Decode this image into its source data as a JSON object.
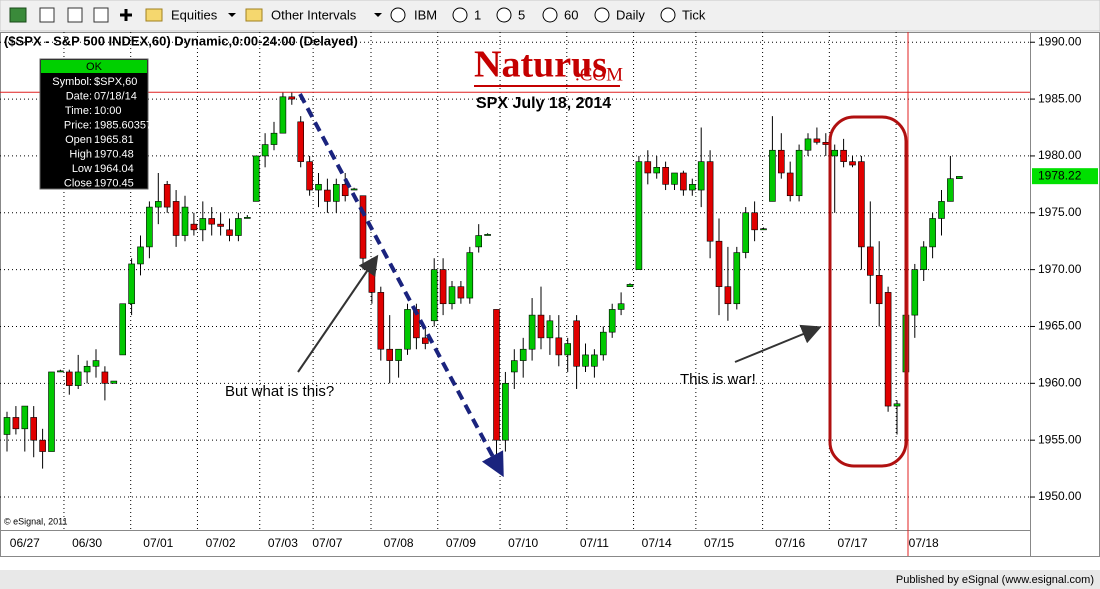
{
  "toolbar": {
    "items": [
      "Equities",
      "Other Intervals",
      "IBM",
      "1",
      "5",
      "60",
      "Daily",
      "Tick"
    ]
  },
  "footer": "Published by eSignal (www.esignal.com)",
  "chart_data": {
    "type": "candlestick",
    "title": "($SPX - S&P 500 INDEX,60) Dynamic,0:00-24:00 (Delayed)",
    "up_color": "#00c800",
    "down_color": "#e00000",
    "ylim": [
      1947.1,
      1990.9
    ],
    "yticks": [
      {
        "value": 1950,
        "label": "1950.00"
      },
      {
        "value": 1955,
        "label": "1955.00"
      },
      {
        "value": 1960,
        "label": "1960.00"
      },
      {
        "value": 1965,
        "label": "1965.00"
      },
      {
        "value": 1970,
        "label": "1970.00"
      },
      {
        "value": 1975,
        "label": "1975.00"
      },
      {
        "value": 1980,
        "label": "1980.00"
      },
      {
        "value": 1985,
        "label": "1985.00"
      },
      {
        "value": 1990,
        "label": "1990.00"
      }
    ],
    "grid": true,
    "last_price": {
      "value": 1978.22,
      "label": "1978.22"
    },
    "info_box": {
      "status": "OK",
      "rows": [
        {
          "label": "Symbol:",
          "value": "$SPX,60"
        },
        {
          "label": "Date:",
          "value": "07/18/14"
        },
        {
          "label": "Time:",
          "value": "10:00"
        },
        {
          "label": "Price:",
          "value": "1985.60357"
        },
        {
          "label": "Open",
          "value": "1965.81"
        },
        {
          "label": "High",
          "value": "1970.48"
        },
        {
          "label": "Low",
          "value": "1964.04"
        },
        {
          "label": "Close",
          "value": "1970.45"
        }
      ]
    },
    "annotations": {
      "brand": "Naturus",
      "brand_suffix": ".COM",
      "subtitle": "SPX July 18, 2014",
      "question": "But what is this?",
      "war": "This is war!",
      "copyright": "© eSignal, 2011"
    },
    "categories": [
      null,
      null,
      "06/27",
      null,
      null,
      null,
      null,
      null,
      null,
      "06/30",
      null,
      null,
      null,
      null,
      null,
      null,
      null,
      "07/01",
      null,
      null,
      null,
      null,
      null,
      null,
      "07/02",
      null,
      null,
      null,
      null,
      null,
      null,
      "07/03",
      null,
      null,
      null,
      null,
      "07/07",
      null,
      null,
      null,
      null,
      null,
      null,
      null,
      "07/08",
      null,
      null,
      null,
      null,
      null,
      null,
      "07/09",
      null,
      null,
      null,
      null,
      null,
      null,
      "07/10",
      null,
      null,
      null,
      null,
      null,
      null,
      null,
      "07/11",
      null,
      null,
      null,
      null,
      null,
      null,
      "07/14",
      null,
      null,
      null,
      null,
      null,
      null,
      "07/15",
      null,
      null,
      null,
      null,
      null,
      null,
      null,
      "07/16",
      null,
      null,
      null,
      null,
      null,
      null,
      "07/17",
      null,
      null,
      null,
      null,
      null,
      null,
      null,
      "07/18",
      null,
      null,
      null,
      null
    ],
    "candles": [
      {
        "open": 1955.5,
        "high": 1957.5,
        "low": 1954,
        "close": 1957
      },
      {
        "open": 1957,
        "high": 1958,
        "low": 1955.5,
        "close": 1956
      },
      {
        "open": 1956,
        "high": 1958,
        "low": 1954,
        "close": 1958
      },
      {
        "open": 1957,
        "high": 1958,
        "low": 1953.5,
        "close": 1955
      },
      {
        "open": 1955,
        "high": 1956,
        "low": 1952.5,
        "close": 1954
      },
      {
        "open": 1954,
        "high": 1961,
        "low": 1954,
        "close": 1961
      },
      {
        "open": 1961,
        "high": 1961.2,
        "low": 1961,
        "close": 1961.1
      },
      {
        "open": 1961,
        "high": 1961.2,
        "low": 1959,
        "close": 1959.8
      },
      {
        "open": 1959.8,
        "high": 1962.5,
        "low": 1959.5,
        "close": 1961
      },
      {
        "open": 1961,
        "high": 1962,
        "low": 1960,
        "close": 1961.5
      },
      {
        "open": 1961.5,
        "high": 1963,
        "low": 1960.5,
        "close": 1962
      },
      {
        "open": 1961,
        "high": 1961.5,
        "low": 1958.5,
        "close": 1960
      },
      {
        "open": 1960,
        "high": 1960.2,
        "low": 1960,
        "close": 1960.2
      },
      {
        "open": 1962.5,
        "high": 1967,
        "low": 1962.5,
        "close": 1967
      },
      {
        "open": 1967,
        "high": 1971,
        "low": 1966,
        "close": 1970.5
      },
      {
        "open": 1970.5,
        "high": 1973,
        "low": 1969.5,
        "close": 1972
      },
      {
        "open": 1972,
        "high": 1976,
        "low": 1971,
        "close": 1975.5
      },
      {
        "open": 1975.5,
        "high": 1978.5,
        "low": 1974,
        "close": 1976
      },
      {
        "open": 1977.5,
        "high": 1977.8,
        "low": 1975,
        "close": 1975.5
      },
      {
        "open": 1976,
        "high": 1977,
        "low": 1972,
        "close": 1973
      },
      {
        "open": 1973,
        "high": 1976.5,
        "low": 1972.5,
        "close": 1975.5
      },
      {
        "open": 1974,
        "high": 1975,
        "low": 1973,
        "close": 1973.5
      },
      {
        "open": 1973.5,
        "high": 1976,
        "low": 1972.5,
        "close": 1974.5
      },
      {
        "open": 1974.5,
        "high": 1975.5,
        "low": 1973,
        "close": 1974
      },
      {
        "open": 1974,
        "high": 1975,
        "low": 1973,
        "close": 1973.8
      },
      {
        "open": 1973.5,
        "high": 1974.5,
        "low": 1972.5,
        "close": 1973
      },
      {
        "open": 1973,
        "high": 1975,
        "low": 1972.5,
        "close": 1974.5
      },
      {
        "open": 1974.5,
        "high": 1974.8,
        "low": 1974.5,
        "close": 1974.6
      },
      {
        "open": 1976,
        "high": 1980,
        "low": 1976,
        "close": 1980
      },
      {
        "open": 1980,
        "high": 1982,
        "low": 1979,
        "close": 1981
      },
      {
        "open": 1981,
        "high": 1983,
        "low": 1980.5,
        "close": 1982
      },
      {
        "open": 1982,
        "high": 1985.6,
        "low": 1982,
        "close": 1985.2
      },
      {
        "open": 1985.2,
        "high": 1985.6,
        "low": 1984.5,
        "close": 1985
      },
      {
        "open": 1983,
        "high": 1983.5,
        "low": 1979,
        "close": 1979.5
      },
      {
        "open": 1979.5,
        "high": 1980,
        "low": 1976.5,
        "close": 1977
      },
      {
        "open": 1977,
        "high": 1978.5,
        "low": 1975.5,
        "close": 1977.5
      },
      {
        "open": 1977,
        "high": 1978,
        "low": 1975,
        "close": 1976
      },
      {
        "open": 1976,
        "high": 1978,
        "low": 1975,
        "close": 1977.5
      },
      {
        "open": 1977.5,
        "high": 1978.5,
        "low": 1976,
        "close": 1976.5
      },
      {
        "open": 1977,
        "high": 1977.2,
        "low": 1977,
        "close": 1977.1
      },
      {
        "open": 1976.5,
        "high": 1976.5,
        "low": 1970,
        "close": 1971
      },
      {
        "open": 1970.5,
        "high": 1971,
        "low": 1967,
        "close": 1968
      },
      {
        "open": 1968,
        "high": 1968.5,
        "low": 1962,
        "close": 1963
      },
      {
        "open": 1963,
        "high": 1966,
        "low": 1960,
        "close": 1962
      },
      {
        "open": 1962,
        "high": 1963,
        "low": 1960.5,
        "close": 1963
      },
      {
        "open": 1963,
        "high": 1967,
        "low": 1962.5,
        "close": 1966.5
      },
      {
        "open": 1966.5,
        "high": 1967,
        "low": 1963,
        "close": 1964
      },
      {
        "open": 1964,
        "high": 1965,
        "low": 1963,
        "close": 1963.5
      },
      {
        "open": 1965.5,
        "high": 1971,
        "low": 1965,
        "close": 1970
      },
      {
        "open": 1970,
        "high": 1971,
        "low": 1966,
        "close": 1967
      },
      {
        "open": 1967,
        "high": 1969,
        "low": 1966.5,
        "close": 1968.5
      },
      {
        "open": 1968.5,
        "high": 1969,
        "low": 1967,
        "close": 1967.5
      },
      {
        "open": 1967.5,
        "high": 1972,
        "low": 1967,
        "close": 1971.5
      },
      {
        "open": 1972,
        "high": 1974,
        "low": 1971.5,
        "close": 1973
      },
      {
        "open": 1973,
        "high": 1973.2,
        "low": 1973,
        "close": 1973.1
      },
      {
        "open": 1966.5,
        "high": 1966.5,
        "low": 1953,
        "close": 1955
      },
      {
        "open": 1955,
        "high": 1961,
        "low": 1954,
        "close": 1960
      },
      {
        "open": 1961,
        "high": 1963,
        "low": 1959.5,
        "close": 1962
      },
      {
        "open": 1962,
        "high": 1964,
        "low": 1960.5,
        "close": 1963
      },
      {
        "open": 1963,
        "high": 1967.5,
        "low": 1962,
        "close": 1966
      },
      {
        "open": 1966,
        "high": 1968.5,
        "low": 1963,
        "close": 1964
      },
      {
        "open": 1964,
        "high": 1966,
        "low": 1962.5,
        "close": 1965.5
      },
      {
        "open": 1964,
        "high": 1966,
        "low": 1961.5,
        "close": 1962.5
      },
      {
        "open": 1962.5,
        "high": 1964,
        "low": 1961,
        "close": 1963.5
      },
      {
        "open": 1965.5,
        "high": 1966,
        "low": 1959.5,
        "close": 1961.5
      },
      {
        "open": 1961.5,
        "high": 1963.5,
        "low": 1961,
        "close": 1962.5
      },
      {
        "open": 1961.5,
        "high": 1963,
        "low": 1960.5,
        "close": 1962.5
      },
      {
        "open": 1962.5,
        "high": 1965,
        "low": 1962,
        "close": 1964.5
      },
      {
        "open": 1964.5,
        "high": 1967,
        "low": 1964,
        "close": 1966.5
      },
      {
        "open": 1966.5,
        "high": 1968,
        "low": 1966,
        "close": 1967
      },
      {
        "open": 1968.5,
        "high": 1968.8,
        "low": 1968.5,
        "close": 1968.7
      },
      {
        "open": 1970,
        "high": 1980,
        "low": 1970,
        "close": 1979.5
      },
      {
        "open": 1979.5,
        "high": 1980.5,
        "low": 1977.5,
        "close": 1978.5
      },
      {
        "open": 1978.5,
        "high": 1980,
        "low": 1978,
        "close": 1979
      },
      {
        "open": 1979,
        "high": 1979.5,
        "low": 1977,
        "close": 1977.5
      },
      {
        "open": 1977.5,
        "high": 1978.5,
        "low": 1977,
        "close": 1978.5
      },
      {
        "open": 1978.5,
        "high": 1978.7,
        "low": 1976.5,
        "close": 1977
      },
      {
        "open": 1977,
        "high": 1978,
        "low": 1976.5,
        "close": 1977.5
      },
      {
        "open": 1977,
        "high": 1982.5,
        "low": 1975.5,
        "close": 1979.5
      },
      {
        "open": 1979.5,
        "high": 1980.5,
        "low": 1971,
        "close": 1972.5
      },
      {
        "open": 1972.5,
        "high": 1974.5,
        "low": 1966,
        "close": 1968.5
      },
      {
        "open": 1968.5,
        "high": 1972,
        "low": 1965.5,
        "close": 1967
      },
      {
        "open": 1967,
        "high": 1972,
        "low": 1966.5,
        "close": 1971.5
      },
      {
        "open": 1971.5,
        "high": 1975.5,
        "low": 1971,
        "close": 1975
      },
      {
        "open": 1975,
        "high": 1976,
        "low": 1972.5,
        "close": 1973.5
      },
      {
        "open": 1973.5,
        "high": 1973.7,
        "low": 1973.5,
        "close": 1973.6
      },
      {
        "open": 1976,
        "high": 1983.5,
        "low": 1976,
        "close": 1980.5
      },
      {
        "open": 1980.5,
        "high": 1982,
        "low": 1978,
        "close": 1978.5
      },
      {
        "open": 1978.5,
        "high": 1979.5,
        "low": 1976,
        "close": 1976.5
      },
      {
        "open": 1976.5,
        "high": 1981,
        "low": 1976,
        "close": 1980.5
      },
      {
        "open": 1980.5,
        "high": 1982,
        "low": 1980,
        "close": 1981.5
      },
      {
        "open": 1981.5,
        "high": 1982.5,
        "low": 1981,
        "close": 1981.2
      },
      {
        "open": 1981.2,
        "high": 1982,
        "low": 1980,
        "close": 1981
      },
      {
        "open": 1980,
        "high": 1981,
        "low": 1975,
        "close": 1980.5
      },
      {
        "open": 1980.5,
        "high": 1981.5,
        "low": 1979,
        "close": 1979.5
      },
      {
        "open": 1979.5,
        "high": 1980,
        "low": 1979,
        "close": 1979.2
      },
      {
        "open": 1979.5,
        "high": 1980,
        "low": 1970,
        "close": 1972
      },
      {
        "open": 1972,
        "high": 1976,
        "low": 1967,
        "close": 1969.5
      },
      {
        "open": 1969.5,
        "high": 1972.5,
        "low": 1965,
        "close": 1967
      },
      {
        "open": 1968,
        "high": 1968.5,
        "low": 1957.5,
        "close": 1958
      },
      {
        "open": 1958,
        "high": 1958.5,
        "low": 1955.5,
        "close": 1958.2
      },
      {
        "open": 1961,
        "high": 1967,
        "low": 1960.5,
        "close": 1966
      },
      {
        "open": 1966,
        "high": 1970.5,
        "low": 1964,
        "close": 1970
      },
      {
        "open": 1970,
        "high": 1972.5,
        "low": 1969,
        "close": 1972
      },
      {
        "open": 1972,
        "high": 1975,
        "low": 1971,
        "close": 1974.5
      },
      {
        "open": 1974.5,
        "high": 1977,
        "low": 1973,
        "close": 1976
      },
      {
        "open": 1976,
        "high": 1980,
        "low": 1976,
        "close": 1978
      },
      {
        "open": 1978,
        "high": 1978.2,
        "low": 1978,
        "close": 1978.2
      }
    ]
  }
}
